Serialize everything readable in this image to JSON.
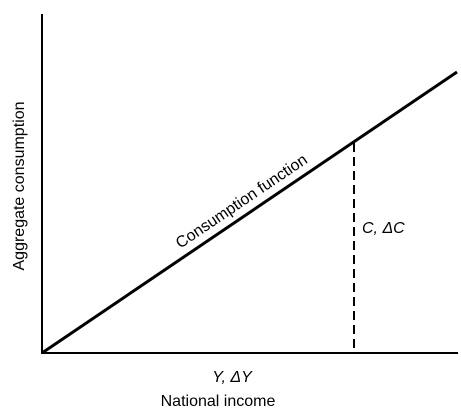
{
  "diagram": {
    "y_axis_label": "Aggregate consumption",
    "x_axis_label": "National income",
    "x_annotation": "Y, ΔY",
    "line_label": "Consumption function",
    "dashed_annotation": "C, ΔC"
  }
}
